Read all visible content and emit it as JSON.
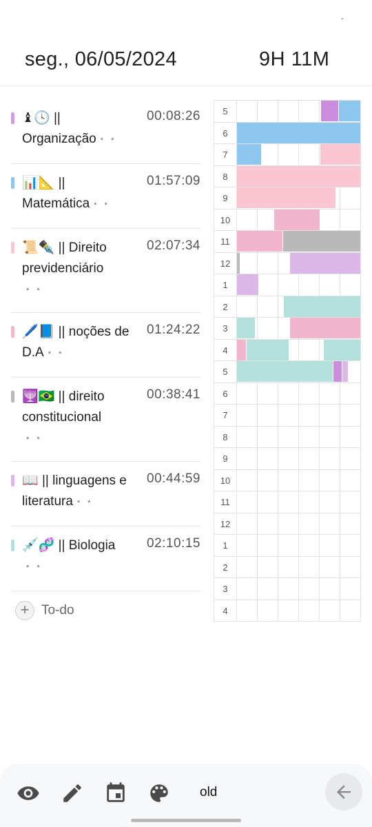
{
  "header": {
    "date": "seg., 06/05/2024",
    "total": "9H 11M",
    "status_mark": "´"
  },
  "tasks": [
    {
      "color": "#d39be0",
      "icons": "♝🕓",
      "title": "|| Organização",
      "stars": "* *",
      "time": "00:08:26"
    },
    {
      "color": "#8fc6ee",
      "icons": "📊📐",
      "title": "|| Matemática",
      "stars": "* *",
      "time": "01:57:09"
    },
    {
      "color": "#f8c7d3",
      "icons": "📜✒️",
      "title": "|| Direito previdenciário",
      "stars": "* *",
      "time": "02:07:34"
    },
    {
      "color": "#f2b8cc",
      "icons": "🖊️📘",
      "title": "|| noções de D.A",
      "stars": "* *",
      "time": "01:24:22"
    },
    {
      "color": "#b9b9b9",
      "icons": "🕎🇧🇷",
      "title": "|| direito constitucional",
      "stars": "* *",
      "time": "00:38:41"
    },
    {
      "color": "#dcb8e8",
      "icons": "📖",
      "title": "|| linguagens e literatura",
      "stars": "* *",
      "time": "00:44:59"
    },
    {
      "color": "#b4e0dc",
      "icons": "💉🧬",
      "title": "|| Biologia",
      "stars": "* *",
      "time": "02:10:15"
    }
  ],
  "todo": {
    "label": "To-do"
  },
  "grid": {
    "hours": [
      "5",
      "6",
      "7",
      "8",
      "9",
      "10",
      "11",
      "12",
      "1",
      "2",
      "3",
      "4",
      "5",
      "6",
      "7",
      "8",
      "9",
      "10",
      "11",
      "12",
      "1",
      "2",
      "3",
      "4"
    ],
    "colors": {
      "purple": "#c98fde",
      "blue": "#8fc6ee",
      "pink": "#f9c6d2",
      "pink2": "#f2b6cc",
      "gray": "#b9b9b9",
      "lavender": "#dcb8e8",
      "teal": "#b4e0dc"
    },
    "segments": [
      {
        "row": 0,
        "start": 0.68,
        "end": 0.82,
        "color": "purple"
      },
      {
        "row": 0,
        "start": 0.82,
        "end": 1.0,
        "color": "blue"
      },
      {
        "row": 1,
        "start": 0.0,
        "end": 1.0,
        "color": "blue"
      },
      {
        "row": 2,
        "start": 0.0,
        "end": 0.2,
        "color": "blue"
      },
      {
        "row": 2,
        "start": 0.67,
        "end": 1.0,
        "color": "pink"
      },
      {
        "row": 3,
        "start": 0.0,
        "end": 1.0,
        "color": "pink"
      },
      {
        "row": 4,
        "start": 0.0,
        "end": 0.8,
        "color": "pink"
      },
      {
        "row": 5,
        "start": 0.3,
        "end": 0.67,
        "color": "pink2"
      },
      {
        "row": 6,
        "start": 0.0,
        "end": 0.37,
        "color": "pink2"
      },
      {
        "row": 6,
        "start": 0.37,
        "end": 1.0,
        "color": "gray"
      },
      {
        "row": 7,
        "start": 0.0,
        "end": 0.03,
        "color": "gray"
      },
      {
        "row": 7,
        "start": 0.43,
        "end": 1.0,
        "color": "lavender"
      },
      {
        "row": 8,
        "start": 0.0,
        "end": 0.18,
        "color": "lavender"
      },
      {
        "row": 9,
        "start": 0.38,
        "end": 1.0,
        "color": "teal"
      },
      {
        "row": 10,
        "start": 0.0,
        "end": 0.15,
        "color": "teal"
      },
      {
        "row": 10,
        "start": 0.43,
        "end": 1.0,
        "color": "pink2"
      },
      {
        "row": 11,
        "start": 0.0,
        "end": 0.08,
        "color": "pink2"
      },
      {
        "row": 11,
        "start": 0.08,
        "end": 0.42,
        "color": "teal"
      },
      {
        "row": 11,
        "start": 0.7,
        "end": 1.0,
        "color": "teal"
      },
      {
        "row": 12,
        "start": 0.0,
        "end": 0.78,
        "color": "teal"
      },
      {
        "row": 12,
        "start": 0.78,
        "end": 0.85,
        "color": "purple"
      },
      {
        "row": 12,
        "start": 0.85,
        "end": 0.9,
        "color": "lavender"
      }
    ]
  },
  "bottom_nav": {
    "items": [
      "eye-icon",
      "pencil-icon",
      "calendar-icon",
      "palette-icon"
    ],
    "old_label": "old",
    "back": "arrow-left-icon"
  }
}
